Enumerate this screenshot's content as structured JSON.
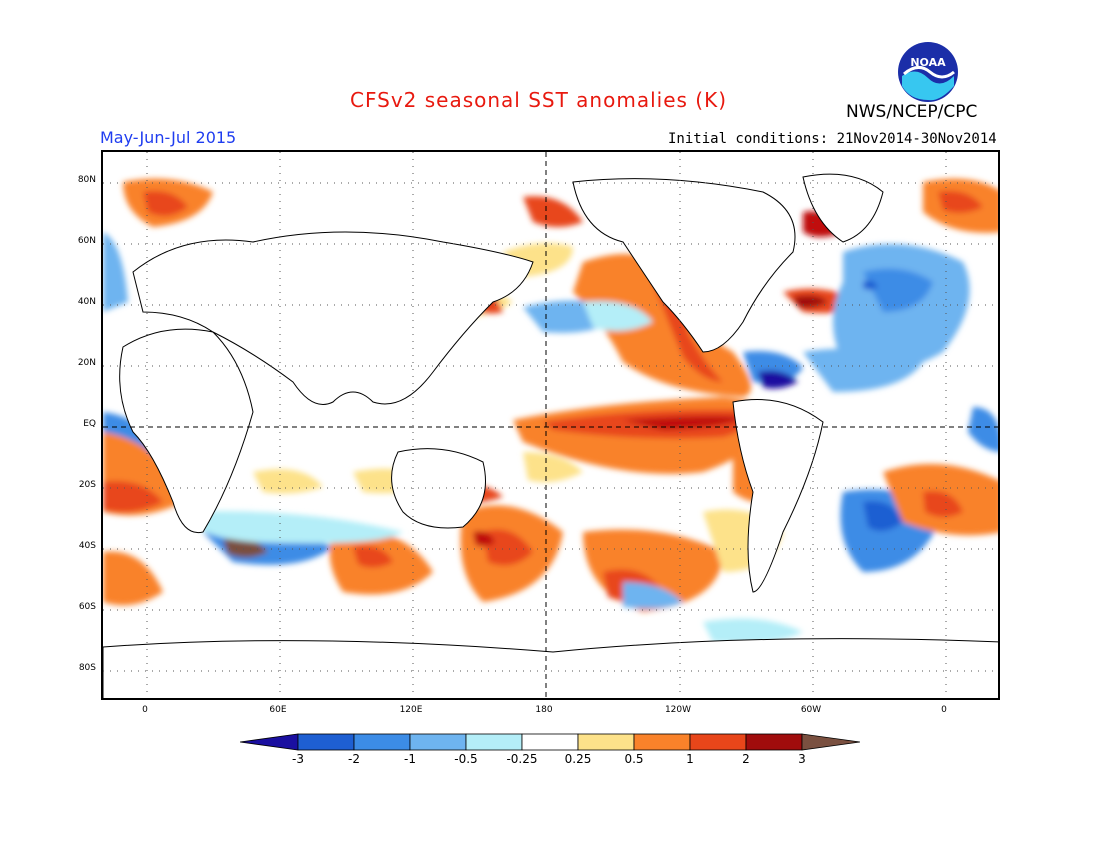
{
  "title": "CFSv2 seasonal SST anomalies (K)",
  "period": "May-Jun-Jul 2015",
  "initial_conditions": "Initial conditions: 21Nov2014-30Nov2014",
  "agency": "NWS/NCEP/CPC",
  "logo_text": "NOAA",
  "lat_labels": [
    "80N",
    "60N",
    "40N",
    "20N",
    "EQ",
    "20S",
    "40S",
    "60S",
    "80S"
  ],
  "lon_labels": [
    "0",
    "60E",
    "120E",
    "180",
    "120W",
    "60W",
    "0"
  ],
  "colorbar": {
    "labels": [
      "-3",
      "-2",
      "-1",
      "-0.5",
      "-0.25",
      "0.25",
      "0.5",
      "1",
      "2",
      "3"
    ],
    "colors": [
      "#1a0fa0",
      "#1e5fd2",
      "#3c8ce6",
      "#6eb4f0",
      "#b4eef8",
      "#ffffff",
      "#fde28a",
      "#f9a23a",
      "#e8461a",
      "#c01010",
      "#a00c0c",
      "#7a5040"
    ]
  },
  "colors": {
    "title": "#e8190f",
    "period": "#1f3df0",
    "strong_warm": "#e8461a",
    "warm": "#f9822a",
    "light_warm": "#fde28a",
    "cool": "#6eb4f0",
    "strong_cool": "#1e5fd2"
  }
}
